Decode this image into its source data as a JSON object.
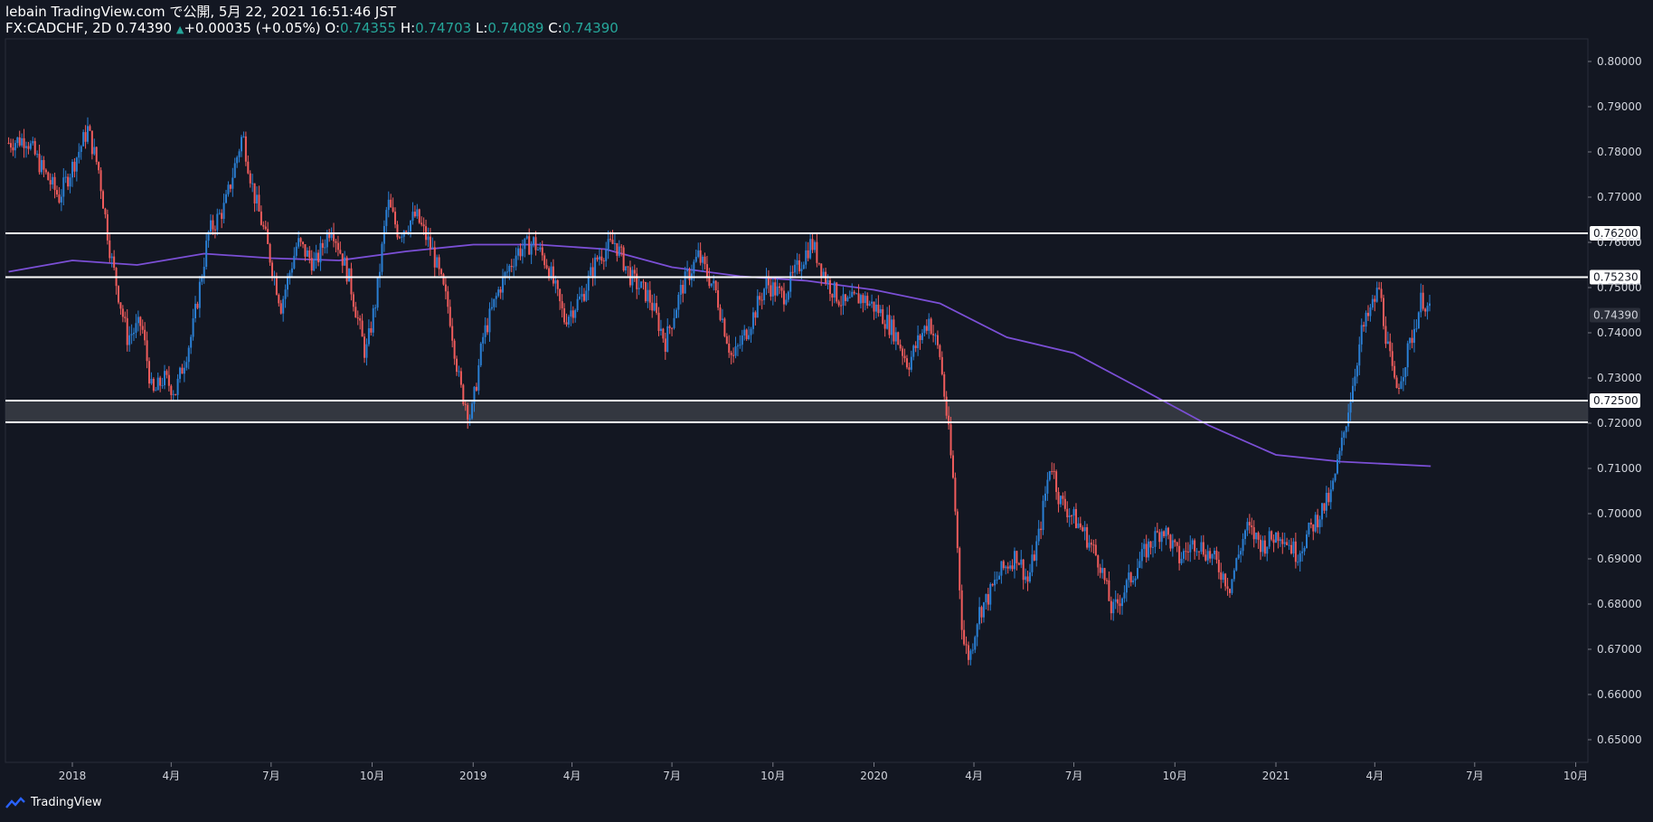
{
  "header": {
    "line1": "lebain TradingView.com で公開, 5月 22, 2021 16:51:46 JST",
    "symbol": "FX:CADCHF, 2D",
    "last": "0.74390",
    "up_arrow": "▲",
    "change": "+0.00035 (+0.05%)",
    "o_label": "O:",
    "o_value": "0.74355",
    "h_label": "H:",
    "h_value": "0.74703",
    "l_label": "L:",
    "l_value": "0.74089",
    "c_label": "C:",
    "c_value": "0.74390"
  },
  "footer": {
    "brand": "TradingView",
    "logo_icon": "tradingview-logo-icon"
  },
  "colors": {
    "background": "#131722",
    "up": "#2a7fd4",
    "down": "#f05c5c",
    "ma": "#7b4fd6",
    "level": "#ffffff",
    "zone": "#3a3d45",
    "axis_text": "#d1d4dc"
  },
  "chart_data": {
    "type": "candlestick",
    "symbol": "FX:CADCHF",
    "timeframe": "2D",
    "ylim": [
      0.645,
      0.805
    ],
    "y_ticks": [
      "0.80000",
      "0.79000",
      "0.78000",
      "0.77000",
      "0.76000",
      "0.75000",
      "0.74000",
      "0.73000",
      "0.72000",
      "0.71000",
      "0.70000",
      "0.69000",
      "0.68000",
      "0.67000",
      "0.66000",
      "0.65000"
    ],
    "x_ticks": [
      {
        "label": "2018",
        "date": "2018-01-01"
      },
      {
        "label": "4月",
        "date": "2018-04-01"
      },
      {
        "label": "7月",
        "date": "2018-07-01"
      },
      {
        "label": "10月",
        "date": "2018-10-01"
      },
      {
        "label": "2019",
        "date": "2019-01-01"
      },
      {
        "label": "4月",
        "date": "2019-04-01"
      },
      {
        "label": "7月",
        "date": "2019-07-01"
      },
      {
        "label": "10月",
        "date": "2019-10-01"
      },
      {
        "label": "2020",
        "date": "2020-01-01"
      },
      {
        "label": "4月",
        "date": "2020-04-01"
      },
      {
        "label": "7月",
        "date": "2020-07-01"
      },
      {
        "label": "10月",
        "date": "2020-10-01"
      },
      {
        "label": "2021",
        "date": "2021-01-01"
      },
      {
        "label": "4月",
        "date": "2021-04-01"
      },
      {
        "label": "7月",
        "date": "2021-07-01"
      },
      {
        "label": "10月",
        "date": "2021-10-01"
      }
    ],
    "horizontal_levels": [
      {
        "value": 0.762,
        "label": "0.76200"
      },
      {
        "value": 0.7523,
        "label": "0.75230"
      },
      {
        "value": 0.725,
        "label": "0.72500"
      },
      {
        "value": 0.7202,
        "label": ""
      }
    ],
    "zone": [
      0.7202,
      0.725
    ],
    "last_price": {
      "value": 0.7439,
      "label": "0.74390"
    },
    "close_path": [
      {
        "date": "2017-11-04",
        "value": 0.782
      },
      {
        "date": "2017-11-20",
        "value": 0.783
      },
      {
        "date": "2017-12-05",
        "value": 0.776
      },
      {
        "date": "2017-12-20",
        "value": 0.77
      },
      {
        "date": "2018-01-05",
        "value": 0.779
      },
      {
        "date": "2018-01-15",
        "value": 0.785
      },
      {
        "date": "2018-01-25",
        "value": 0.776
      },
      {
        "date": "2018-02-05",
        "value": 0.757
      },
      {
        "date": "2018-02-20",
        "value": 0.739
      },
      {
        "date": "2018-03-05",
        "value": 0.742
      },
      {
        "date": "2018-03-15",
        "value": 0.726
      },
      {
        "date": "2018-03-25",
        "value": 0.73
      },
      {
        "date": "2018-04-05",
        "value": 0.727
      },
      {
        "date": "2018-04-20",
        "value": 0.74
      },
      {
        "date": "2018-05-05",
        "value": 0.762
      },
      {
        "date": "2018-05-20",
        "value": 0.768
      },
      {
        "date": "2018-06-05",
        "value": 0.784
      },
      {
        "date": "2018-06-15",
        "value": 0.771
      },
      {
        "date": "2018-06-25",
        "value": 0.762
      },
      {
        "date": "2018-07-10",
        "value": 0.746
      },
      {
        "date": "2018-07-25",
        "value": 0.76
      },
      {
        "date": "2018-08-10",
        "value": 0.755
      },
      {
        "date": "2018-08-25",
        "value": 0.764
      },
      {
        "date": "2018-09-10",
        "value": 0.752
      },
      {
        "date": "2018-09-25",
        "value": 0.735
      },
      {
        "date": "2018-10-05",
        "value": 0.748
      },
      {
        "date": "2018-10-15",
        "value": 0.769
      },
      {
        "date": "2018-10-25",
        "value": 0.762
      },
      {
        "date": "2018-11-10",
        "value": 0.766
      },
      {
        "date": "2018-11-25",
        "value": 0.758
      },
      {
        "date": "2018-12-10",
        "value": 0.745
      },
      {
        "date": "2018-12-20",
        "value": 0.728
      },
      {
        "date": "2018-12-30",
        "value": 0.721
      },
      {
        "date": "2019-01-10",
        "value": 0.739
      },
      {
        "date": "2019-01-25",
        "value": 0.75
      },
      {
        "date": "2019-02-10",
        "value": 0.758
      },
      {
        "date": "2019-02-25",
        "value": 0.76
      },
      {
        "date": "2019-03-10",
        "value": 0.755
      },
      {
        "date": "2019-03-25",
        "value": 0.743
      },
      {
        "date": "2019-04-10",
        "value": 0.748
      },
      {
        "date": "2019-04-25",
        "value": 0.757
      },
      {
        "date": "2019-05-10",
        "value": 0.76
      },
      {
        "date": "2019-05-25",
        "value": 0.752
      },
      {
        "date": "2019-06-10",
        "value": 0.748
      },
      {
        "date": "2019-06-25",
        "value": 0.738
      },
      {
        "date": "2019-07-10",
        "value": 0.75
      },
      {
        "date": "2019-07-25",
        "value": 0.757
      },
      {
        "date": "2019-08-10",
        "value": 0.749
      },
      {
        "date": "2019-08-25",
        "value": 0.734
      },
      {
        "date": "2019-09-10",
        "value": 0.742
      },
      {
        "date": "2019-09-25",
        "value": 0.751
      },
      {
        "date": "2019-10-10",
        "value": 0.748
      },
      {
        "date": "2019-10-25",
        "value": 0.755
      },
      {
        "date": "2019-11-05",
        "value": 0.76
      },
      {
        "date": "2019-11-20",
        "value": 0.751
      },
      {
        "date": "2019-12-05",
        "value": 0.746
      },
      {
        "date": "2019-12-20",
        "value": 0.748
      },
      {
        "date": "2020-01-05",
        "value": 0.745
      },
      {
        "date": "2020-01-20",
        "value": 0.74
      },
      {
        "date": "2020-02-01",
        "value": 0.733
      },
      {
        "date": "2020-02-10",
        "value": 0.738
      },
      {
        "date": "2020-02-20",
        "value": 0.743
      },
      {
        "date": "2020-03-01",
        "value": 0.735
      },
      {
        "date": "2020-03-08",
        "value": 0.72
      },
      {
        "date": "2020-03-14",
        "value": 0.705
      },
      {
        "date": "2020-03-18",
        "value": 0.688
      },
      {
        "date": "2020-03-22",
        "value": 0.672
      },
      {
        "date": "2020-03-28",
        "value": 0.668
      },
      {
        "date": "2020-04-05",
        "value": 0.678
      },
      {
        "date": "2020-04-15",
        "value": 0.682
      },
      {
        "date": "2020-04-25",
        "value": 0.687
      },
      {
        "date": "2020-05-10",
        "value": 0.691
      },
      {
        "date": "2020-05-20",
        "value": 0.685
      },
      {
        "date": "2020-05-30",
        "value": 0.695
      },
      {
        "date": "2020-06-10",
        "value": 0.712
      },
      {
        "date": "2020-06-18",
        "value": 0.703
      },
      {
        "date": "2020-06-28",
        "value": 0.7
      },
      {
        "date": "2020-07-10",
        "value": 0.696
      },
      {
        "date": "2020-07-25",
        "value": 0.689
      },
      {
        "date": "2020-08-05",
        "value": 0.678
      },
      {
        "date": "2020-08-20",
        "value": 0.685
      },
      {
        "date": "2020-09-05",
        "value": 0.692
      },
      {
        "date": "2020-09-20",
        "value": 0.697
      },
      {
        "date": "2020-10-05",
        "value": 0.69
      },
      {
        "date": "2020-10-20",
        "value": 0.694
      },
      {
        "date": "2020-11-05",
        "value": 0.69
      },
      {
        "date": "2020-11-20",
        "value": 0.684
      },
      {
        "date": "2020-12-05",
        "value": 0.697
      },
      {
        "date": "2020-12-20",
        "value": 0.693
      },
      {
        "date": "2021-01-05",
        "value": 0.696
      },
      {
        "date": "2021-01-20",
        "value": 0.691
      },
      {
        "date": "2021-02-05",
        "value": 0.698
      },
      {
        "date": "2021-02-20",
        "value": 0.704
      },
      {
        "date": "2021-03-01",
        "value": 0.714
      },
      {
        "date": "2021-03-10",
        "value": 0.726
      },
      {
        "date": "2021-03-20",
        "value": 0.74
      },
      {
        "date": "2021-03-30",
        "value": 0.746
      },
      {
        "date": "2021-04-05",
        "value": 0.75
      },
      {
        "date": "2021-04-12",
        "value": 0.738
      },
      {
        "date": "2021-04-20",
        "value": 0.727
      },
      {
        "date": "2021-04-28",
        "value": 0.733
      },
      {
        "date": "2021-05-08",
        "value": 0.742
      },
      {
        "date": "2021-05-14",
        "value": 0.748
      },
      {
        "date": "2021-05-22",
        "value": 0.7439
      }
    ],
    "series": [
      {
        "type": "line",
        "points": [
          {
            "date": "2017-11-04",
            "value": 0.7535
          },
          {
            "date": "2018-01-01",
            "value": 0.756
          },
          {
            "date": "2018-03-01",
            "value": 0.755
          },
          {
            "date": "2018-05-01",
            "value": 0.7575
          },
          {
            "date": "2018-07-01",
            "value": 0.7565
          },
          {
            "date": "2018-09-01",
            "value": 0.756
          },
          {
            "date": "2018-11-01",
            "value": 0.758
          },
          {
            "date": "2019-01-01",
            "value": 0.7595
          },
          {
            "date": "2019-03-01",
            "value": 0.7595
          },
          {
            "date": "2019-05-01",
            "value": 0.7585
          },
          {
            "date": "2019-07-01",
            "value": 0.7545
          },
          {
            "date": "2019-09-01",
            "value": 0.7525
          },
          {
            "date": "2019-11-01",
            "value": 0.7515
          },
          {
            "date": "2020-01-01",
            "value": 0.7495
          },
          {
            "date": "2020-03-01",
            "value": 0.7465
          },
          {
            "date": "2020-05-01",
            "value": 0.739
          },
          {
            "date": "2020-07-01",
            "value": 0.7355
          },
          {
            "date": "2020-09-01",
            "value": 0.7275
          },
          {
            "date": "2020-11-01",
            "value": 0.7195
          },
          {
            "date": "2021-01-01",
            "value": 0.713
          },
          {
            "date": "2021-03-01",
            "value": 0.7115
          },
          {
            "date": "2021-05-22",
            "value": 0.7105
          }
        ]
      }
    ]
  }
}
